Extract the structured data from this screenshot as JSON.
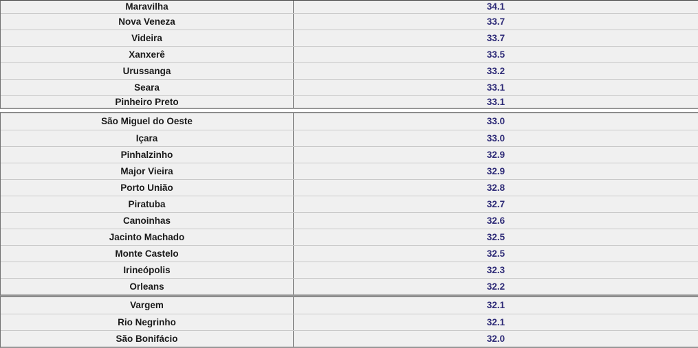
{
  "table": {
    "description": "ranking table of municipalities with temperature values",
    "columns": [
      "municipality",
      "value"
    ],
    "style": {
      "row_background": "#f0f0f0",
      "municipality_text_color": "#1a1a1a",
      "value_text_color": "#2e2b77",
      "row_border_color": "#c9c9c9",
      "section_border_color": "#8c8c8c",
      "column_divider_color": "#6f6f6f"
    },
    "sections": [
      {
        "rows": [
          {
            "municipality": "Maravilha",
            "value": "34.1"
          },
          {
            "municipality": "Nova Veneza",
            "value": "33.7"
          },
          {
            "municipality": "Videira",
            "value": "33.7"
          },
          {
            "municipality": "Xanxerê",
            "value": "33.5"
          },
          {
            "municipality": "Urussanga",
            "value": "33.2"
          },
          {
            "municipality": "Seara",
            "value": "33.1"
          },
          {
            "municipality": "Pinheiro Preto",
            "value": "33.1"
          }
        ]
      },
      {
        "rows": [
          {
            "municipality": "São Miguel do Oeste",
            "value": "33.0"
          },
          {
            "municipality": "Içara",
            "value": "33.0"
          },
          {
            "municipality": "Pinhalzinho",
            "value": "32.9"
          },
          {
            "municipality": "Major Vieira",
            "value": "32.9"
          },
          {
            "municipality": "Porto União",
            "value": "32.8"
          },
          {
            "municipality": "Piratuba",
            "value": "32.7"
          },
          {
            "municipality": "Canoinhas",
            "value": "32.6"
          },
          {
            "municipality": "Jacinto Machado",
            "value": "32.5"
          },
          {
            "municipality": "Monte Castelo",
            "value": "32.5"
          },
          {
            "municipality": "Irineópolis",
            "value": "32.3"
          },
          {
            "municipality": "Orleans",
            "value": "32.2"
          }
        ]
      },
      {
        "rows": [
          {
            "municipality": "Vargem",
            "value": "32.1"
          },
          {
            "municipality": "Rio Negrinho",
            "value": "32.1"
          },
          {
            "municipality": "São Bonifácio",
            "value": "32.0"
          }
        ]
      }
    ]
  }
}
